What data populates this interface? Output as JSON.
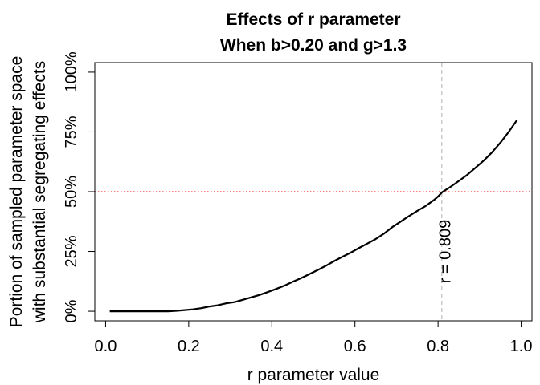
{
  "chart_data": {
    "type": "line",
    "title": "Effects of r parameter",
    "subtitle": "When b>0.20 and g>1.3",
    "xlabel": "r parameter value",
    "ylabel_line1": "Portion of sampled parameter space",
    "ylabel_line2": "with substantial segregating effects",
    "xlim": [
      -0.026,
      1.026
    ],
    "ylim": [
      -0.04,
      1.04
    ],
    "x_ticks": [
      0.0,
      0.2,
      0.4,
      0.6,
      0.8,
      1.0
    ],
    "x_tick_labels": [
      "0.0",
      "0.2",
      "0.4",
      "0.6",
      "0.8",
      "1.0"
    ],
    "y_ticks": [
      0,
      0.25,
      0.5,
      0.75,
      1.0
    ],
    "y_tick_labels": [
      "0%",
      "25%",
      "50%",
      "75%",
      "100%"
    ],
    "grid": false,
    "legend": "none",
    "reference_lines": {
      "horizontal": {
        "y": 0.5,
        "color": "#ff3030",
        "style": "dotted"
      },
      "vertical": {
        "x": 0.809,
        "color": "#bebebe",
        "style": "dashed"
      }
    },
    "annotation": {
      "text": "r = 0.809",
      "x": 0.83,
      "y": 0.25
    },
    "series": [
      {
        "color": "#000000",
        "x": [
          0.01,
          0.05,
          0.1,
          0.15,
          0.17,
          0.19,
          0.21,
          0.23,
          0.25,
          0.27,
          0.29,
          0.31,
          0.33,
          0.35,
          0.37,
          0.39,
          0.41,
          0.43,
          0.45,
          0.47,
          0.49,
          0.51,
          0.53,
          0.55,
          0.57,
          0.59,
          0.61,
          0.63,
          0.65,
          0.67,
          0.69,
          0.71,
          0.73,
          0.75,
          0.77,
          0.79,
          0.8,
          0.81,
          0.83,
          0.85,
          0.87,
          0.89,
          0.91,
          0.93,
          0.95,
          0.97,
          0.99
        ],
        "y": [
          0.0,
          0.0,
          0.0,
          0.0,
          0.002,
          0.005,
          0.008,
          0.013,
          0.02,
          0.025,
          0.033,
          0.038,
          0.048,
          0.058,
          0.068,
          0.08,
          0.093,
          0.107,
          0.123,
          0.138,
          0.155,
          0.172,
          0.19,
          0.21,
          0.228,
          0.245,
          0.265,
          0.283,
          0.302,
          0.325,
          0.352,
          0.375,
          0.398,
          0.42,
          0.44,
          0.465,
          0.48,
          0.498,
          0.52,
          0.545,
          0.57,
          0.6,
          0.63,
          0.665,
          0.705,
          0.75,
          0.8
        ]
      }
    ]
  }
}
